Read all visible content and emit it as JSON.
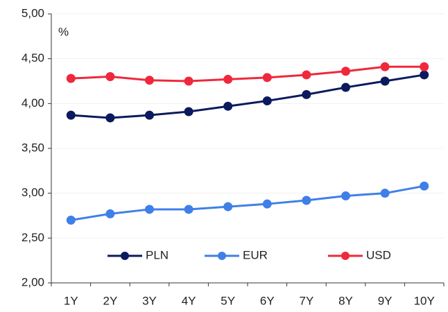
{
  "chart_data": {
    "type": "line",
    "y_label": "%",
    "categories": [
      "1Y",
      "2Y",
      "3Y",
      "4Y",
      "5Y",
      "6Y",
      "7Y",
      "8Y",
      "9Y",
      "10Y"
    ],
    "series": [
      {
        "name": "PLN",
        "color": "#0b1a5e",
        "values": [
          3.87,
          3.84,
          3.87,
          3.91,
          3.97,
          4.03,
          4.1,
          4.18,
          4.25,
          4.32
        ]
      },
      {
        "name": "EUR",
        "color": "#3f7fe8",
        "values": [
          2.7,
          2.77,
          2.82,
          2.82,
          2.85,
          2.88,
          2.92,
          2.97,
          3.0,
          3.08
        ]
      },
      {
        "name": "USD",
        "color": "#f0283c",
        "values": [
          4.28,
          4.3,
          4.26,
          4.25,
          4.27,
          4.29,
          4.32,
          4.36,
          4.41,
          4.41
        ]
      }
    ],
    "ylim": [
      2,
      5
    ],
    "yticks": [
      {
        "value": 2,
        "label": "2,00"
      },
      {
        "value": 2.5,
        "label": "2,50"
      },
      {
        "value": 3,
        "label": "3,00"
      },
      {
        "value": 3.5,
        "label": "3,50"
      },
      {
        "value": 4,
        "label": "4,00"
      },
      {
        "value": 4.5,
        "label": "4,50"
      },
      {
        "value": 5,
        "label": "5,00"
      }
    ],
    "grid": true,
    "legend": "bottom"
  }
}
